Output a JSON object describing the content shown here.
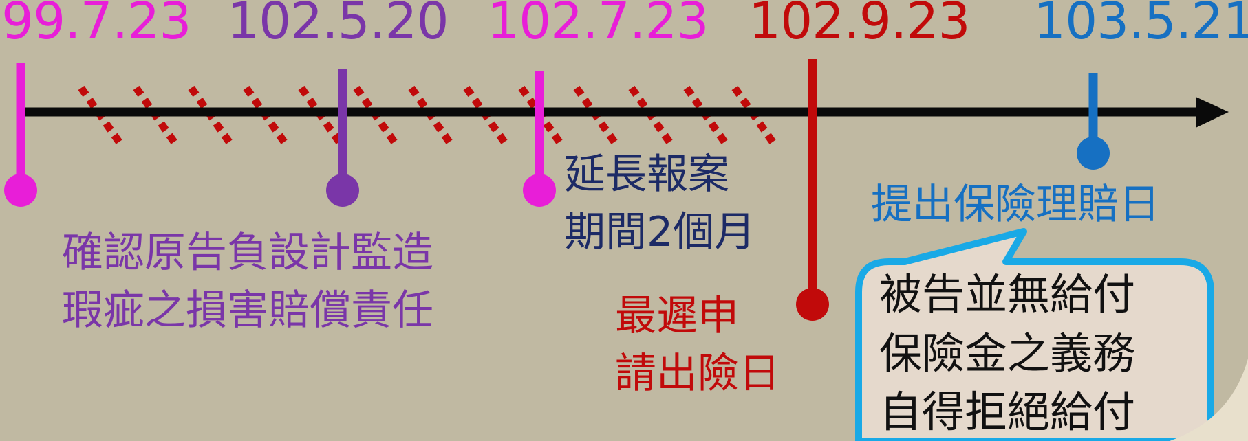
{
  "dates": [
    {
      "text": "99.7.23",
      "color": "#e81ed8"
    },
    {
      "text": "102.5.20",
      "color": "#7a36a8"
    },
    {
      "text": "102.7.23",
      "color": "#e81ed8"
    },
    {
      "text": "102.9.23",
      "color": "#c10a0a"
    },
    {
      "text": "103.5.21",
      "color": "#1670c2"
    }
  ],
  "labels": {
    "confirm": {
      "lines": [
        "確認原告負設計監造",
        "瑕疵之損害賠償責任"
      ],
      "color": "#7a36a8"
    },
    "extension": {
      "lines": [
        "延長報案",
        "期間2個月"
      ],
      "color": "#1c2a66"
    },
    "deadline": {
      "lines": [
        "最遲申",
        "請出險日"
      ],
      "color": "#c10a0a"
    },
    "claim": {
      "lines": [
        "提出保險理賠日"
      ],
      "color": "#1670c2"
    }
  },
  "bubble": {
    "lines": [
      "被告並無給付",
      "保險金之義務",
      "自得拒絕給付"
    ],
    "border_color": "#19a9e6",
    "fill_color": "#e5d9cc"
  },
  "colors": {
    "background": "#c0b9a2",
    "axis": "#0a0a0a",
    "hatch": "#c10a0a",
    "page_curl": "#e8e0cc"
  }
}
